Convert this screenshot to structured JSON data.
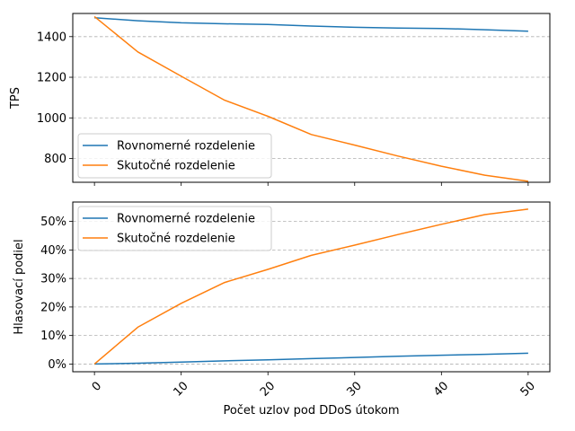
{
  "chart_data": [
    {
      "type": "line",
      "ylabel": "TPS",
      "xlim": [
        -2.5,
        52.5
      ],
      "ylim": [
        683,
        1514
      ],
      "yticks": [
        800,
        1000,
        1200,
        1400
      ],
      "ytick_labels": [
        "800",
        "1000",
        "1200",
        "1400"
      ],
      "grid": "y-dashed",
      "legend": "center-left",
      "series": [
        {
          "name": "Rovnomerné rozdelenie",
          "color": "#1f77b4",
          "x": [
            0,
            5,
            10,
            15,
            20,
            25,
            30,
            35,
            40,
            45,
            50
          ],
          "values": [
            1493,
            1478,
            1468,
            1463,
            1460,
            1452,
            1446,
            1442,
            1440,
            1434,
            1427
          ]
        },
        {
          "name": "Skutočné rozdelenie",
          "color": "#ff7f0e",
          "x": [
            0,
            5,
            10,
            15,
            20,
            25,
            30,
            35,
            40,
            45,
            50
          ],
          "values": [
            1499,
            1325,
            1205,
            1087,
            1008,
            918,
            866,
            812,
            762,
            718,
            688
          ]
        }
      ]
    },
    {
      "type": "line",
      "xlabel": "Počet uzlov pod DDoS útokom",
      "ylabel": "Hlasovací podiel",
      "xlim": [
        -2.5,
        52.5
      ],
      "ylim": [
        -2.7,
        56.8
      ],
      "xticks": [
        0,
        10,
        20,
        30,
        40,
        50
      ],
      "xtick_labels": [
        "0",
        "10",
        "20",
        "30",
        "40",
        "50"
      ],
      "yticks": [
        0,
        10,
        20,
        30,
        40,
        50
      ],
      "ytick_labels": [
        "0%",
        "10%",
        "20%",
        "30%",
        "40%",
        "50%"
      ],
      "grid": "y-dashed",
      "legend": "top-left",
      "series": [
        {
          "name": "Rovnomerné rozdelenie",
          "color": "#1f77b4",
          "x": [
            0,
            5,
            10,
            15,
            20,
            25,
            30,
            35,
            40,
            45,
            50
          ],
          "values": [
            0.0,
            0.3,
            0.7,
            1.1,
            1.5,
            1.9,
            2.3,
            2.7,
            3.1,
            3.4,
            3.8
          ]
        },
        {
          "name": "Skutočné rozdelenie",
          "color": "#ff7f0e",
          "x": [
            0,
            5,
            10,
            15,
            20,
            25,
            30,
            35,
            40,
            45,
            50
          ],
          "values": [
            0.0,
            12.9,
            21.3,
            28.6,
            33.2,
            38.1,
            41.7,
            45.4,
            49.0,
            52.4,
            54.3
          ]
        }
      ]
    }
  ]
}
